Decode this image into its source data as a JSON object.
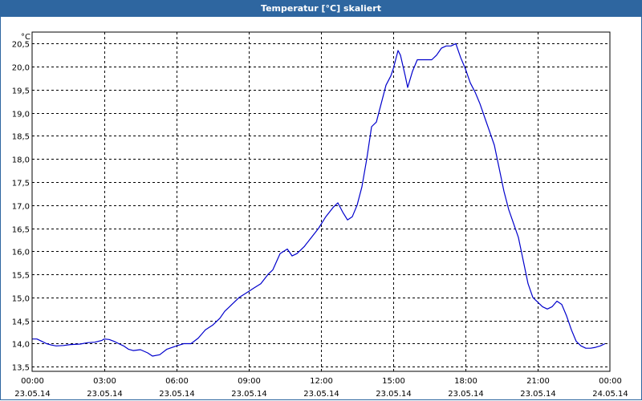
{
  "window": {
    "title": "Temperatur [°C] skaliert"
  },
  "chart_data": {
    "type": "line",
    "title": "Temperatur [°C] skaliert",
    "unit_label": "°C",
    "ylim": [
      13.4,
      20.75
    ],
    "y_ticks": [
      "13,5",
      "14,0",
      "14,5",
      "15,0",
      "15,5",
      "16,0",
      "16,5",
      "17,0",
      "17,5",
      "18,0",
      "18,5",
      "19,0",
      "19,5",
      "20,0",
      "20,5"
    ],
    "y_tick_values": [
      13.5,
      14.0,
      14.5,
      15.0,
      15.5,
      16.0,
      16.5,
      17.0,
      17.5,
      18.0,
      18.5,
      19.0,
      19.5,
      20.0,
      20.5
    ],
    "xlim_hours": [
      0,
      24
    ],
    "x_ticks": [
      {
        "time": "00:00",
        "date": "23.05.14",
        "hour": 0
      },
      {
        "time": "03:00",
        "date": "23.05.14",
        "hour": 3
      },
      {
        "time": "06:00",
        "date": "23.05.14",
        "hour": 6
      },
      {
        "time": "09:00",
        "date": "23.05.14",
        "hour": 9
      },
      {
        "time": "12:00",
        "date": "23.05.14",
        "hour": 12
      },
      {
        "time": "15:00",
        "date": "23.05.14",
        "hour": 15
      },
      {
        "time": "18:00",
        "date": "23.05.14",
        "hour": 18
      },
      {
        "time": "21:00",
        "date": "23.05.14",
        "hour": 21
      },
      {
        "time": "00:00",
        "date": "24.05.14",
        "hour": 24
      }
    ],
    "grid": true,
    "series": [
      {
        "color": "#0000cc",
        "x": [
          0.0,
          0.2,
          0.4,
          0.6,
          0.8,
          1.0,
          1.3,
          1.6,
          2.0,
          2.3,
          2.6,
          2.9,
          3.0,
          3.2,
          3.4,
          3.6,
          3.8,
          4.0,
          4.2,
          4.5,
          4.8,
          5.0,
          5.3,
          5.6,
          6.0,
          6.3,
          6.6,
          6.9,
          7.2,
          7.5,
          7.8,
          8.0,
          8.3,
          8.6,
          8.9,
          9.2,
          9.5,
          9.8,
          10.0,
          10.3,
          10.6,
          10.8,
          11.0,
          11.3,
          11.6,
          11.9,
          12.2,
          12.5,
          12.7,
          12.9,
          13.1,
          13.3,
          13.5,
          13.7,
          13.9,
          14.1,
          14.3,
          14.5,
          14.7,
          14.9,
          15.0,
          15.2,
          15.3,
          15.5,
          15.6,
          15.8,
          16.0,
          16.2,
          16.4,
          16.6,
          16.8,
          17.0,
          17.2,
          17.4,
          17.6,
          17.8,
          18.0,
          18.1,
          18.2,
          18.4,
          18.6,
          18.8,
          19.0,
          19.2,
          19.4,
          19.6,
          19.8,
          20.0,
          20.2,
          20.4,
          20.6,
          20.8,
          21.0,
          21.2,
          21.4,
          21.6,
          21.8,
          22.0,
          22.2,
          22.4,
          22.6,
          22.8,
          23.0,
          23.2,
          23.4,
          23.6,
          23.8
        ],
        "values": [
          14.1,
          14.1,
          14.05,
          14.0,
          13.97,
          13.95,
          13.96,
          13.98,
          13.99,
          14.02,
          14.03,
          14.07,
          14.1,
          14.09,
          14.05,
          14.0,
          13.95,
          13.88,
          13.85,
          13.87,
          13.8,
          13.73,
          13.76,
          13.88,
          13.95,
          14.0,
          14.0,
          14.12,
          14.3,
          14.4,
          14.55,
          14.7,
          14.85,
          15.0,
          15.1,
          15.2,
          15.3,
          15.5,
          15.6,
          15.95,
          16.05,
          15.9,
          15.95,
          16.1,
          16.3,
          16.5,
          16.75,
          16.95,
          17.05,
          16.85,
          16.68,
          16.75,
          17.0,
          17.4,
          18.0,
          18.7,
          18.8,
          19.2,
          19.6,
          19.8,
          19.95,
          20.35,
          20.25,
          19.8,
          19.55,
          19.9,
          20.15,
          20.15,
          20.15,
          20.15,
          20.25,
          20.4,
          20.45,
          20.45,
          20.5,
          20.2,
          19.95,
          19.8,
          19.65,
          19.45,
          19.2,
          18.9,
          18.6,
          18.3,
          17.8,
          17.3,
          16.9,
          16.6,
          16.3,
          15.8,
          15.3,
          15.0,
          14.9,
          14.8,
          14.75,
          14.8,
          14.92,
          14.85,
          14.6,
          14.3,
          14.05,
          13.95,
          13.9,
          13.9,
          13.92,
          13.95,
          14.0
        ]
      }
    ]
  }
}
